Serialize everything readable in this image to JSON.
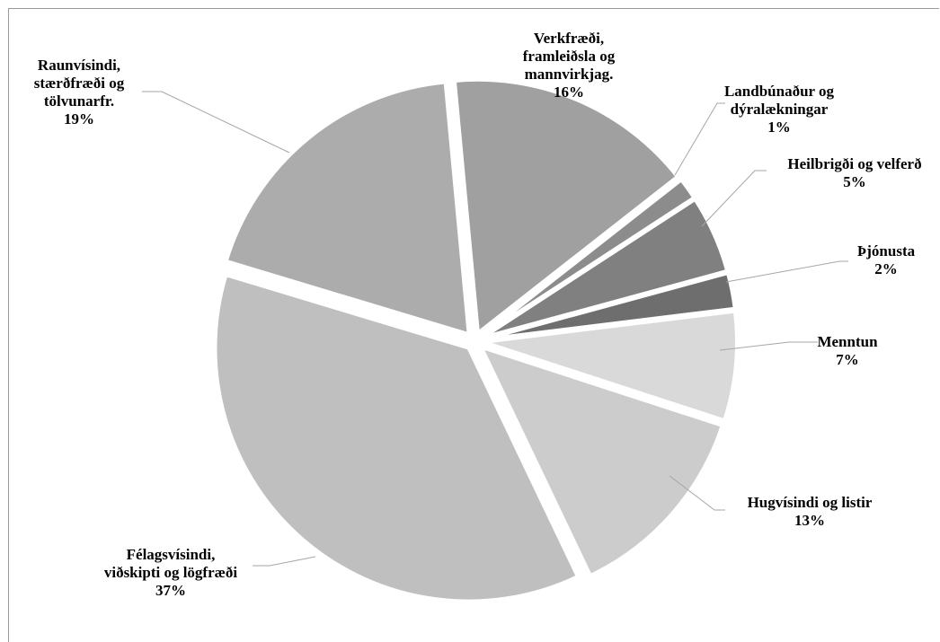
{
  "chart_data": {
    "type": "pie",
    "title": "",
    "legend": "none",
    "exploded": true,
    "slices": [
      {
        "name": "Menntun",
        "label_lines": [
          "Menntun"
        ],
        "percent_label": "7%",
        "value": 7,
        "color": "#d9d9d9"
      },
      {
        "name": "Hugvísindi og listir",
        "label_lines": [
          "Hugvísindi og listir"
        ],
        "percent_label": "13%",
        "value": 13,
        "color": "#cccccc"
      },
      {
        "name": "Félagsvísindi, viðskipti og lögfræði",
        "label_lines": [
          "Félagsvísindi,",
          "viðskipti og lögfræði"
        ],
        "percent_label": "37%",
        "value": 37,
        "color": "#bfbfbf"
      },
      {
        "name": "Raunvísindi, stærðfræði og tölvunarfr.",
        "label_lines": [
          "Raunvísindi,",
          "stærðfræði og",
          "tölvunarfr."
        ],
        "percent_label": "19%",
        "value": 19,
        "color": "#acacac"
      },
      {
        "name": "Verkfræði, framleiðsla og mannvirkjag.",
        "label_lines": [
          "Verkfræði,",
          "framleiðsla og",
          "mannvirkjag."
        ],
        "percent_label": "16%",
        "value": 16,
        "color": "#a0a0a0"
      },
      {
        "name": "Landbúnaður og dýralækningar",
        "label_lines": [
          "Landbúnaður og",
          "dýralækningar"
        ],
        "percent_label": "1%",
        "value": 1.4,
        "color": "#8c8c8c"
      },
      {
        "name": "Heilbrigði og velferð",
        "label_lines": [
          "Heilbrigði og velferð"
        ],
        "percent_label": "5%",
        "value": 5,
        "color": "#808080"
      },
      {
        "name": "Þjónusta",
        "label_lines": [
          "Þjónusta"
        ],
        "percent_label": "2%",
        "value": 2.3,
        "color": "#6e6e6e"
      }
    ]
  }
}
